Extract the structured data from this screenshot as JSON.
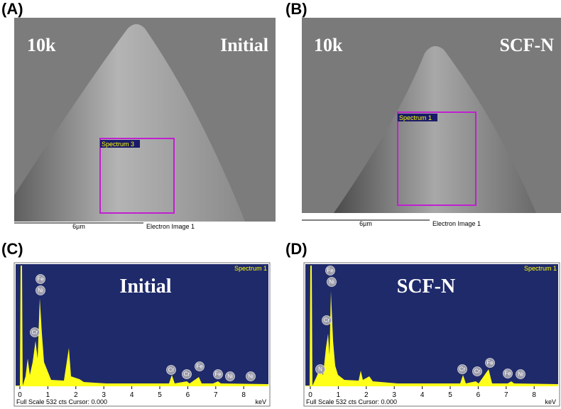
{
  "panels": [
    {
      "label": "(A)",
      "magnification": "10k",
      "condition": "Initial",
      "region": "Spectrum 3",
      "scale_bar": "6µm",
      "image_caption": "Electron Image 1"
    },
    {
      "label": "(B)",
      "magnification": "10k",
      "condition": "SCF-N",
      "region": "Spectrum 1",
      "scale_bar": "6µm",
      "image_caption": "Electron Image 1"
    },
    {
      "label": "(C)",
      "spectrum_name": "Spectrum 1",
      "condition": "Initial",
      "peaks": [
        "Fe",
        "Ni",
        "Cr",
        "Cr",
        "Cr",
        "Fe",
        "Fe",
        "Ni",
        "Ni"
      ],
      "x_ticks": [
        0,
        1,
        2,
        3,
        4,
        5,
        6,
        7,
        8
      ],
      "x_unit": "keV",
      "status": "Full Scale 532 cts Cursor: 0.000"
    },
    {
      "label": "(D)",
      "spectrum_name": "Spectrum 1",
      "condition": "SCF-N",
      "peaks": [
        "Fe",
        "Ni",
        "Cr",
        "N",
        "Cr",
        "Cr",
        "Fe",
        "Fe",
        "Ni"
      ],
      "x_ticks": [
        0,
        1,
        2,
        3,
        4,
        5,
        6,
        7,
        8
      ],
      "x_unit": "keV",
      "status": "Full Scale 532 cts Cursor: 0.000"
    }
  ]
}
